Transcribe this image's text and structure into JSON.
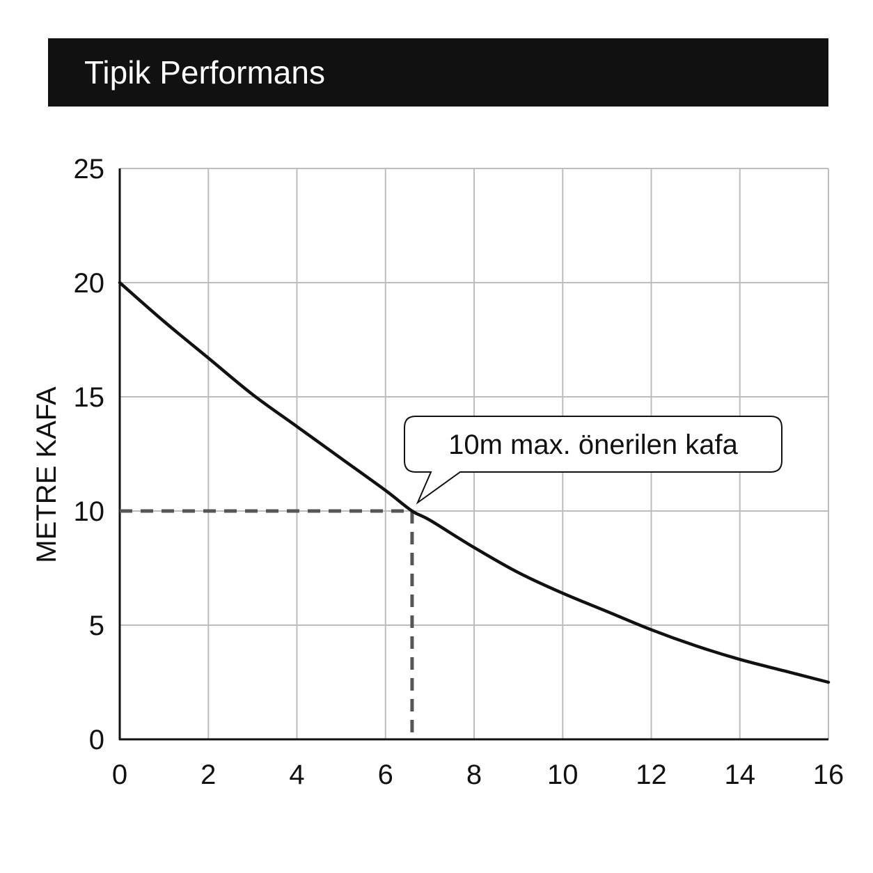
{
  "chart_data": {
    "type": "line",
    "title": "Tipik Performans",
    "xlabel": "",
    "ylabel": "METRE KAFA",
    "xlim": [
      0,
      16
    ],
    "ylim": [
      0,
      25
    ],
    "x_ticks": [
      "0",
      "2",
      "4",
      "6",
      "8",
      "10",
      "12",
      "14",
      "16"
    ],
    "y_ticks": [
      "0",
      "5",
      "10",
      "15",
      "20",
      "25"
    ],
    "grid": true,
    "series": [
      {
        "name": "",
        "x": [
          0,
          1,
          2,
          3,
          4,
          5,
          6,
          6.6,
          7,
          8,
          9,
          10,
          11,
          12,
          13,
          14,
          15,
          16
        ],
        "y": [
          20,
          18.3,
          16.7,
          15.1,
          13.7,
          12.3,
          10.9,
          10.0,
          9.6,
          8.4,
          7.3,
          6.4,
          5.6,
          4.8,
          4.1,
          3.5,
          3.0,
          2.5
        ]
      }
    ],
    "reference_point": {
      "x": 6.6,
      "y": 10
    },
    "annotation": "10m max. önerilen kafa",
    "colors": {
      "line": "#111111",
      "grid": "#bdbdbd",
      "reference": "#555555",
      "title_bg": "#111111",
      "title_text": "#ffffff"
    }
  }
}
